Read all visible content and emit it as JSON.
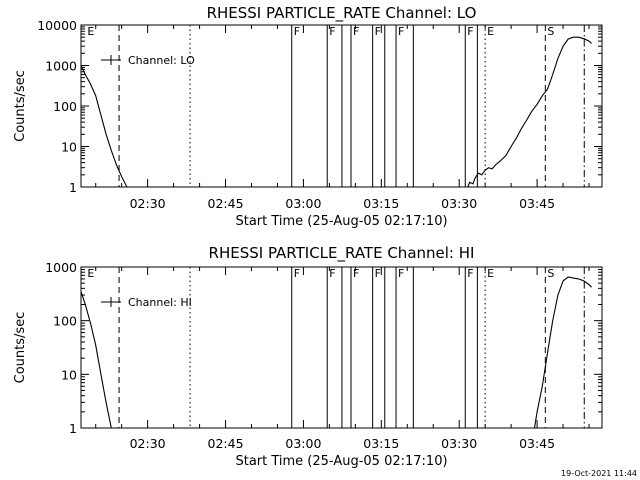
{
  "footer": {
    "timestamp": "19-Oct-2021 11:44"
  },
  "chart_data": [
    {
      "type": "line",
      "title": "RHESSI PARTICLE_RATE Channel: LO",
      "xlabel": "Start Time (25-Aug-05 02:17:10)",
      "ylabel": "Counts/sec",
      "yscale": "log",
      "ylim": [
        1,
        10000
      ],
      "xlim": [
        "02:17:10",
        "03:57:30"
      ],
      "x_ticks": [
        "02:30",
        "02:45",
        "03:00",
        "03:15",
        "03:30",
        "03:45"
      ],
      "y_ticks": [
        "1",
        "10",
        "100",
        "1000",
        "10000"
      ],
      "legend": {
        "label": "Channel: LO",
        "position": "top-left"
      },
      "series": [
        {
          "name": "Channel: LO",
          "segments": [
            {
              "x": [
                "02:17:10",
                "02:18:00",
                "02:19:00",
                "02:20:00",
                "02:21:00",
                "02:22:00",
                "02:23:00",
                "02:24:00",
                "02:25:00",
                "02:26:00"
              ],
              "y": [
                1000,
                600,
                350,
                180,
                60,
                20,
                8,
                3.5,
                1.8,
                1
              ]
            },
            {
              "x": [
                "03:31:40",
                "03:32:00",
                "03:32:40",
                "03:33:00",
                "03:33:40",
                "03:34:20",
                "03:35:00",
                "03:35:40",
                "03:36:20",
                "03:37:00",
                "03:38:00",
                "03:39:00",
                "03:40:00",
                "03:41:00",
                "03:42:00",
                "03:43:00",
                "03:44:00",
                "03:45:00",
                "03:46:00",
                "03:47:00",
                "03:48:00",
                "03:49:00",
                "03:50:00",
                "03:51:00",
                "03:52:00",
                "03:53:00",
                "03:54:00",
                "03:55:00",
                "03:55:30"
              ],
              "y": [
                1,
                1.3,
                1.2,
                1.6,
                2.2,
                2,
                2.6,
                3,
                2.8,
                3.5,
                4.5,
                6,
                10,
                16,
                28,
                45,
                75,
                110,
                180,
                260,
                600,
                1500,
                3000,
                4500,
                5000,
                5000,
                4600,
                4000,
                3500
              ]
            }
          ]
        }
      ],
      "markers": [
        {
          "kind": "event",
          "label": "E",
          "x": "02:18:00"
        },
        {
          "kind": "dashed",
          "label": "",
          "x": "02:24:30"
        },
        {
          "kind": "dotted",
          "label": "",
          "x": "02:38:10"
        },
        {
          "kind": "flag",
          "label": "F",
          "x": "02:57:45"
        },
        {
          "kind": "flag",
          "label": "F",
          "x": "03:04:35"
        },
        {
          "kind": "flag",
          "label": "",
          "x": "03:07:25"
        },
        {
          "kind": "flag",
          "label": "F",
          "x": "03:09:10"
        },
        {
          "kind": "flag",
          "label": "F",
          "x": "03:13:20"
        },
        {
          "kind": "flag",
          "label": "",
          "x": "03:15:40"
        },
        {
          "kind": "flag",
          "label": "F",
          "x": "03:17:50"
        },
        {
          "kind": "flag",
          "label": "",
          "x": "03:21:10"
        },
        {
          "kind": "flag",
          "label": "F",
          "x": "03:31:10"
        },
        {
          "kind": "flag",
          "label": "",
          "x": "03:33:30"
        },
        {
          "kind": "dotted",
          "label": "E",
          "x": "03:35:00"
        },
        {
          "kind": "dashed",
          "label": "S",
          "x": "03:46:35"
        },
        {
          "kind": "dashdot",
          "label": "",
          "x": "03:54:05"
        }
      ]
    },
    {
      "type": "line",
      "title": "RHESSI PARTICLE_RATE Channel: HI",
      "xlabel": "Start Time (25-Aug-05 02:17:10)",
      "ylabel": "Counts/sec",
      "yscale": "log",
      "ylim": [
        1,
        1000
      ],
      "xlim": [
        "02:17:10",
        "03:57:30"
      ],
      "x_ticks": [
        "02:30",
        "02:45",
        "03:00",
        "03:15",
        "03:30",
        "03:45"
      ],
      "y_ticks": [
        "1",
        "10",
        "100",
        "1000"
      ],
      "legend": {
        "label": "Channel: HI",
        "position": "top-left"
      },
      "series": [
        {
          "name": "Channel: HI",
          "segments": [
            {
              "x": [
                "02:17:10",
                "02:18:00",
                "02:19:00",
                "02:20:00",
                "02:21:00",
                "02:22:00",
                "02:23:00"
              ],
              "y": [
                350,
                200,
                90,
                35,
                10,
                3,
                1
              ]
            },
            {
              "x": [
                "03:44:30",
                "03:45:00",
                "03:46:00",
                "03:47:00",
                "03:48:00",
                "03:49:00",
                "03:50:00",
                "03:51:00",
                "03:52:00",
                "03:53:00",
                "03:54:00",
                "03:55:00",
                "03:55:30"
              ],
              "y": [
                1,
                2,
                6,
                25,
                100,
                300,
                550,
                650,
                620,
                600,
                550,
                470,
                420
              ]
            }
          ]
        }
      ],
      "markers": [
        {
          "kind": "event",
          "label": "E",
          "x": "02:18:00"
        },
        {
          "kind": "dashed",
          "label": "",
          "x": "02:24:30"
        },
        {
          "kind": "dotted",
          "label": "",
          "x": "02:38:10"
        },
        {
          "kind": "flag",
          "label": "F",
          "x": "02:57:45"
        },
        {
          "kind": "flag",
          "label": "F",
          "x": "03:04:35"
        },
        {
          "kind": "flag",
          "label": "",
          "x": "03:07:25"
        },
        {
          "kind": "flag",
          "label": "F",
          "x": "03:09:10"
        },
        {
          "kind": "flag",
          "label": "F",
          "x": "03:13:20"
        },
        {
          "kind": "flag",
          "label": "",
          "x": "03:15:40"
        },
        {
          "kind": "flag",
          "label": "F",
          "x": "03:17:50"
        },
        {
          "kind": "flag",
          "label": "",
          "x": "03:21:10"
        },
        {
          "kind": "flag",
          "label": "F",
          "x": "03:31:10"
        },
        {
          "kind": "flag",
          "label": "",
          "x": "03:33:30"
        },
        {
          "kind": "dotted",
          "label": "E",
          "x": "03:35:00"
        },
        {
          "kind": "dashed",
          "label": "S",
          "x": "03:46:35"
        },
        {
          "kind": "dashdot",
          "label": "",
          "x": "03:54:05"
        }
      ]
    }
  ]
}
